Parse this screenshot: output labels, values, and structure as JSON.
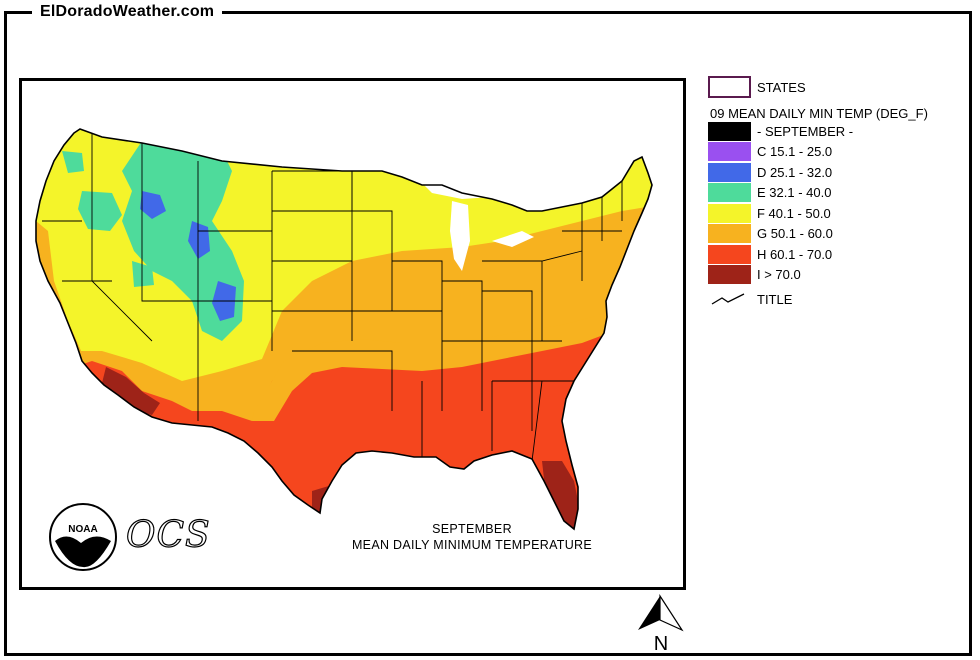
{
  "site": {
    "title": "ElDoradoWeather.com"
  },
  "legend": {
    "states_label": "STATES",
    "layer_title": "09 MEAN DAILY MIN TEMP (DEG_F)",
    "classes": [
      {
        "label": "- SEPTEMBER -",
        "color": "#000000"
      },
      {
        "label": "C 15.1 - 25.0",
        "color": "#9a50f0"
      },
      {
        "label": "D 25.1 - 32.0",
        "color": "#4169e8"
      },
      {
        "label": "E 32.1 - 40.0",
        "color": "#4edb9b"
      },
      {
        "label": "F 40.1 - 50.0",
        "color": "#f4f42a"
      },
      {
        "label": "G 50.1 - 60.0",
        "color": "#f7b21f"
      },
      {
        "label": "H 60.1 - 70.0",
        "color": "#f5461e"
      },
      {
        "label": "I > 70.0",
        "color": "#9e2318"
      }
    ],
    "title_label": "TITLE"
  },
  "map": {
    "caption_line1": "SEPTEMBER",
    "caption_line2": "MEAN DAILY MINIMUM TEMPERATURE",
    "noaa_logo_text": "NOAA",
    "ocs_text": "OCS",
    "state_border_color": "#000000"
  },
  "north_arrow": {
    "label": "N"
  }
}
